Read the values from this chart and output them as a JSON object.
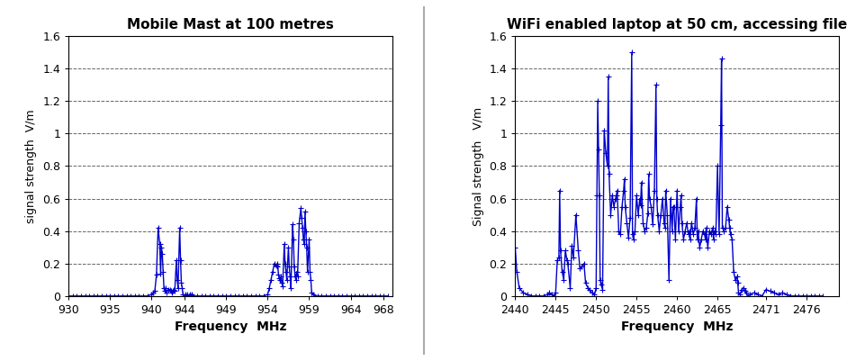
{
  "chart1": {
    "title": "Mobile Mast at 100 metres",
    "xlabel": "Frequency  MHz",
    "ylabel": "signal strength  V/m",
    "xlim": [
      930,
      969
    ],
    "ylim": [
      0,
      1.6
    ],
    "xticks": [
      930,
      935,
      940,
      944,
      949,
      954,
      959,
      964,
      968
    ],
    "yticks": [
      0,
      0.2,
      0.4,
      0.6,
      0.8,
      1.0,
      1.2,
      1.4,
      1.6
    ],
    "x": [
      930.0,
      930.5,
      931.0,
      931.5,
      932.0,
      932.5,
      933.0,
      933.5,
      934.0,
      934.5,
      935.0,
      935.5,
      936.0,
      936.5,
      937.0,
      937.5,
      938.0,
      938.5,
      939.0,
      939.5,
      940.0,
      940.2,
      940.4,
      940.6,
      940.8,
      941.0,
      941.1,
      941.2,
      941.3,
      941.4,
      941.5,
      941.6,
      941.7,
      941.8,
      942.0,
      942.2,
      942.4,
      942.5,
      942.6,
      942.7,
      942.8,
      943.0,
      943.1,
      943.2,
      943.4,
      943.5,
      943.6,
      943.7,
      943.8,
      944.0,
      944.1,
      944.2,
      944.3,
      944.5,
      944.6,
      944.7,
      944.8,
      945.0,
      945.5,
      946.0,
      946.5,
      947.0,
      947.5,
      948.0,
      948.5,
      949.0,
      949.5,
      950.0,
      950.5,
      951.0,
      951.5,
      952.0,
      952.5,
      953.0,
      953.5,
      954.0,
      954.2,
      954.4,
      954.6,
      954.8,
      955.0,
      955.1,
      955.2,
      955.3,
      955.4,
      955.5,
      955.6,
      955.7,
      955.8,
      956.0,
      956.1,
      956.2,
      956.3,
      956.5,
      956.6,
      956.7,
      956.8,
      957.0,
      957.1,
      957.2,
      957.3,
      957.4,
      957.5,
      957.6,
      957.8,
      958.0,
      958.1,
      958.2,
      958.3,
      958.4,
      958.5,
      958.6,
      958.7,
      958.8,
      959.0,
      959.1,
      959.2,
      959.3,
      959.5,
      959.6,
      960.0,
      960.5,
      961.0,
      961.5,
      962.0,
      962.5,
      963.0,
      963.5,
      964.0,
      964.5,
      965.0,
      965.5,
      966.0,
      966.5,
      967.0,
      967.5,
      968.0,
      968.5
    ],
    "y": [
      0.0,
      0.0,
      0.0,
      0.0,
      0.0,
      0.0,
      0.0,
      0.0,
      0.0,
      0.0,
      0.0,
      0.0,
      0.0,
      0.0,
      0.0,
      0.0,
      0.0,
      0.0,
      0.0,
      0.0,
      0.01,
      0.02,
      0.03,
      0.13,
      0.42,
      0.32,
      0.14,
      0.3,
      0.26,
      0.15,
      0.05,
      0.03,
      0.05,
      0.02,
      0.04,
      0.04,
      0.03,
      0.02,
      0.03,
      0.04,
      0.03,
      0.22,
      0.1,
      0.05,
      0.42,
      0.22,
      0.08,
      0.05,
      0.01,
      0.0,
      0.01,
      0.0,
      0.01,
      0.0,
      0.01,
      0.0,
      0.01,
      0.0,
      0.0,
      0.0,
      0.0,
      0.0,
      0.0,
      0.0,
      0.0,
      0.0,
      0.0,
      0.0,
      0.0,
      0.0,
      0.0,
      0.0,
      0.0,
      0.0,
      0.0,
      0.01,
      0.05,
      0.1,
      0.15,
      0.2,
      0.19,
      0.18,
      0.2,
      0.13,
      0.11,
      0.1,
      0.12,
      0.08,
      0.06,
      0.32,
      0.2,
      0.15,
      0.1,
      0.3,
      0.18,
      0.12,
      0.05,
      0.44,
      0.35,
      0.18,
      0.12,
      0.1,
      0.15,
      0.12,
      0.45,
      0.54,
      0.48,
      0.42,
      0.35,
      0.32,
      0.52,
      0.4,
      0.3,
      0.15,
      0.35,
      0.15,
      0.1,
      0.02,
      0.01,
      0.0,
      0.0,
      0.0,
      0.0,
      0.0,
      0.0,
      0.0,
      0.0,
      0.0,
      0.0,
      0.0,
      0.0,
      0.0,
      0.0,
      0.0,
      0.0,
      0.0,
      0.0,
      0.0
    ]
  },
  "chart2": {
    "title": "WiFi enabled laptop at 50 cm, accessing file",
    "xlabel": "Frequency  MHz",
    "ylabel": "Signal strength   V/m",
    "xlim": [
      2440,
      2480
    ],
    "ylim": [
      0,
      1.6
    ],
    "xticks": [
      2440,
      2445,
      2450,
      2455,
      2460,
      2465,
      2471,
      2476
    ],
    "yticks": [
      0,
      0.2,
      0.4,
      0.6,
      0.8,
      1.0,
      1.2,
      1.4,
      1.6
    ],
    "x": [
      2440.0,
      2440.2,
      2440.5,
      2441.0,
      2441.5,
      2442.0,
      2442.5,
      2443.0,
      2443.5,
      2444.0,
      2444.2,
      2444.5,
      2444.8,
      2445.0,
      2445.2,
      2445.4,
      2445.5,
      2445.6,
      2445.8,
      2446.0,
      2446.2,
      2446.4,
      2446.5,
      2446.8,
      2447.0,
      2447.2,
      2447.5,
      2447.8,
      2448.0,
      2448.2,
      2448.5,
      2448.7,
      2449.0,
      2449.2,
      2449.5,
      2449.8,
      2450.0,
      2450.1,
      2450.2,
      2450.3,
      2450.4,
      2450.5,
      2450.6,
      2450.8,
      2451.0,
      2451.2,
      2451.4,
      2451.5,
      2451.6,
      2451.8,
      2452.0,
      2452.2,
      2452.4,
      2452.5,
      2452.6,
      2452.8,
      2453.0,
      2453.2,
      2453.4,
      2453.5,
      2453.6,
      2453.8,
      2454.0,
      2454.2,
      2454.4,
      2454.5,
      2454.6,
      2454.8,
      2455.0,
      2455.2,
      2455.4,
      2455.5,
      2455.6,
      2455.8,
      2456.0,
      2456.2,
      2456.4,
      2456.5,
      2456.6,
      2456.8,
      2457.0,
      2457.2,
      2457.4,
      2457.5,
      2457.6,
      2457.8,
      2458.0,
      2458.2,
      2458.4,
      2458.5,
      2458.6,
      2458.8,
      2459.0,
      2459.2,
      2459.4,
      2459.5,
      2459.6,
      2459.8,
      2460.0,
      2460.2,
      2460.4,
      2460.5,
      2460.6,
      2460.8,
      2461.0,
      2461.2,
      2461.4,
      2461.5,
      2461.6,
      2461.8,
      2462.0,
      2462.2,
      2462.4,
      2462.5,
      2462.6,
      2462.8,
      2463.0,
      2463.2,
      2463.4,
      2463.5,
      2463.6,
      2463.8,
      2464.0,
      2464.2,
      2464.4,
      2464.5,
      2464.6,
      2464.8,
      2465.0,
      2465.2,
      2465.4,
      2465.5,
      2465.6,
      2465.8,
      2466.0,
      2466.2,
      2466.4,
      2466.5,
      2466.6,
      2466.8,
      2467.0,
      2467.2,
      2467.4,
      2467.5,
      2467.6,
      2467.8,
      2468.0,
      2468.2,
      2468.4,
      2468.5,
      2468.8,
      2469.0,
      2469.5,
      2470.0,
      2470.5,
      2471.0,
      2471.5,
      2472.0,
      2472.5,
      2473.0,
      2473.5,
      2474.0,
      2474.5,
      2475.0,
      2475.5,
      2476.0,
      2476.5,
      2477.0,
      2477.5,
      2478.0
    ],
    "y": [
      0.3,
      0.15,
      0.05,
      0.02,
      0.01,
      0.0,
      0.0,
      0.0,
      0.0,
      0.01,
      0.02,
      0.01,
      0.0,
      0.02,
      0.22,
      0.24,
      0.65,
      0.28,
      0.15,
      0.1,
      0.28,
      0.22,
      0.2,
      0.05,
      0.31,
      0.24,
      0.5,
      0.28,
      0.17,
      0.18,
      0.2,
      0.08,
      0.05,
      0.04,
      0.02,
      0.01,
      0.05,
      0.62,
      1.2,
      0.9,
      0.62,
      0.1,
      0.07,
      0.04,
      1.02,
      0.88,
      0.8,
      1.35,
      0.75,
      0.5,
      0.62,
      0.55,
      0.6,
      0.62,
      0.65,
      0.4,
      0.38,
      0.55,
      0.65,
      0.72,
      0.55,
      0.45,
      0.36,
      0.48,
      1.5,
      0.38,
      0.35,
      0.4,
      0.62,
      0.5,
      0.6,
      0.56,
      0.7,
      0.45,
      0.4,
      0.42,
      0.51,
      0.75,
      0.6,
      0.55,
      0.44,
      0.65,
      1.3,
      0.6,
      0.5,
      0.4,
      0.5,
      0.6,
      0.45,
      0.42,
      0.65,
      0.5,
      0.1,
      0.6,
      0.4,
      0.55,
      0.55,
      0.35,
      0.65,
      0.4,
      0.55,
      0.62,
      0.45,
      0.35,
      0.4,
      0.45,
      0.38,
      0.4,
      0.35,
      0.45,
      0.38,
      0.42,
      0.6,
      0.35,
      0.4,
      0.3,
      0.35,
      0.4,
      0.38,
      0.35,
      0.42,
      0.3,
      0.4,
      0.38,
      0.42,
      0.35,
      0.4,
      0.38,
      0.8,
      0.38,
      1.05,
      1.46,
      0.42,
      0.4,
      0.42,
      0.55,
      0.47,
      0.42,
      0.38,
      0.35,
      0.15,
      0.1,
      0.12,
      0.08,
      0.02,
      0.01,
      0.04,
      0.05,
      0.03,
      0.02,
      0.0,
      0.01,
      0.02,
      0.01,
      0.0,
      0.04,
      0.03,
      0.02,
      0.01,
      0.02,
      0.01,
      0.0,
      0.0,
      0.0,
      0.0,
      0.0,
      0.0,
      0.0,
      0.0,
      0.0
    ]
  },
  "line_color": "#0000CC",
  "marker": "+",
  "markersize": 4,
  "linewidth": 1.0,
  "background_color": "#FFFFFF",
  "plot_bg": "#FFFFFF",
  "divider_color": "#AAAAAA",
  "grid_color": "#000000",
  "grid_linestyle": "--",
  "grid_alpha": 0.6
}
